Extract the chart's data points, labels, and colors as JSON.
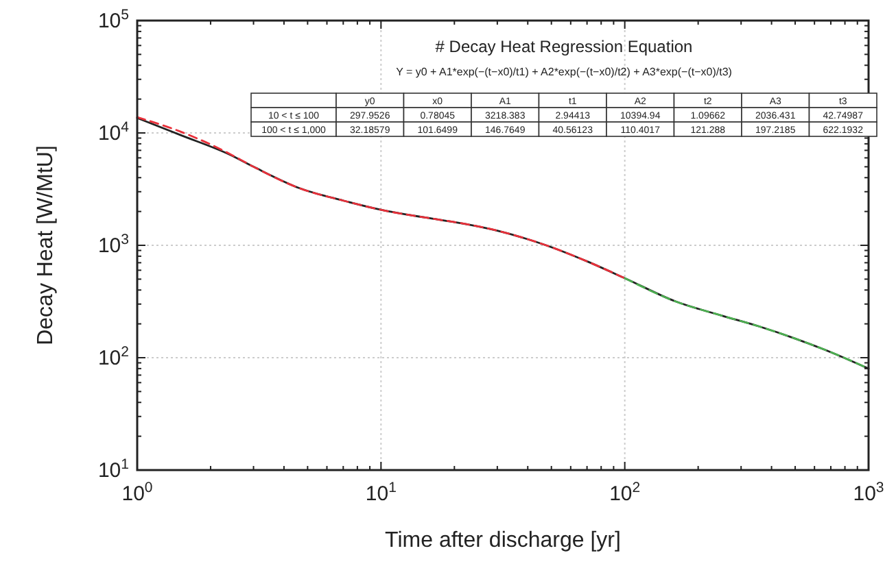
{
  "chart_data": {
    "type": "line",
    "xlabel": "Time after discharge [yr]",
    "ylabel": "Decay Heat [W/MtU]",
    "log": "xy",
    "grid": true,
    "marker": "none",
    "xlim": [
      1,
      1000
    ],
    "xticks": [
      {
        "value": 1,
        "label": "10$^{0}$"
      },
      {
        "value": 10,
        "label": "10$^{1}$"
      },
      {
        "value": 100,
        "label": "10$^{2}$"
      },
      {
        "value": 1000,
        "label": "10$^{3}$"
      }
    ],
    "ylim": [
      10,
      100000
    ],
    "yticks": [
      {
        "value": 10,
        "label": "10$^{1}$"
      },
      {
        "value": 100,
        "label": "10$^{2}$"
      },
      {
        "value": 1000,
        "label": "10$^{3}$"
      },
      {
        "value": 10000,
        "label": "10$^{4}$"
      },
      {
        "value": 100000,
        "label": "10$^{5}$"
      }
    ],
    "series": [
      {
        "color": "#222222",
        "line_style": "solid",
        "x": [
          1,
          1.5,
          2.4,
          3,
          4.6,
          7,
          10,
          17,
          20,
          30,
          47.6,
          70,
          100,
          162,
          250,
          355,
          500,
          700,
          1000
        ],
        "values": [
          13600,
          9600,
          6400,
          5000,
          3240,
          2500,
          2070,
          1700,
          1610,
          1350,
          1000,
          720,
          510,
          316,
          237,
          190,
          148,
          112,
          80
        ]
      },
      {
        "color": "#e8303a",
        "line_style": "dashed",
        "x": [
          1,
          1.5,
          2,
          2.4,
          3,
          4.6,
          7,
          10,
          17,
          20,
          30,
          47.6,
          70,
          100
        ],
        "values": [
          13800,
          10300,
          7900,
          6500,
          5000,
          3240,
          2500,
          2070,
          1700,
          1610,
          1350,
          1000,
          720,
          510
        ]
      },
      {
        "color": "#4caf50",
        "line_style": "dashed",
        "x": [
          100,
          162,
          250,
          355,
          500,
          700,
          1000
        ],
        "values": [
          510,
          316,
          237,
          190,
          148,
          112,
          80
        ]
      }
    ],
    "annotations": [
      "# Decay Heat Regression Equation",
      "Y = y0 + A1*exp(−(t−x0)/t1) + A2*exp(−(t−x0)/t2) + A3*exp(−(t−x0)/t3)",
      "y0",
      "x0",
      "A1",
      "t1",
      "A2",
      "t2",
      "A3",
      "t3",
      "10 < t ≤ 100",
      "297.9526",
      "0.78045",
      "3218.383",
      "2.94413",
      "10394.94",
      "1.09662",
      "2036.431",
      "42.74987",
      "100 < t ≤ 1,000",
      "32.18579",
      "101.6499",
      "146.7649",
      "40.56123",
      "110.4017",
      "121.288",
      "197.2185",
      "622.1932"
    ]
  }
}
